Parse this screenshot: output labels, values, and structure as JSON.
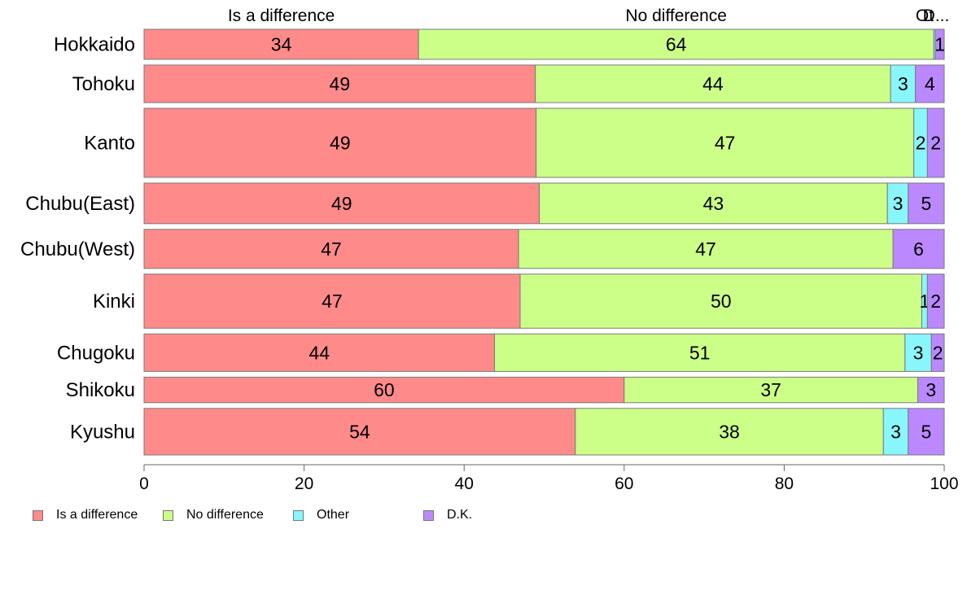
{
  "chart_data": {
    "type": "bar",
    "orientation": "horizontal",
    "stacked": true,
    "categories": [
      "Hokkaido",
      "Tohoku",
      "Kanto",
      "Chubu(East)",
      "Chubu(West)",
      "Kinki",
      "Chugoku",
      "Shikoku",
      "Kyushu"
    ],
    "series": [
      {
        "name": "Is a difference",
        "color": "#FF8A8A",
        "values": [
          34.3,
          48.9,
          49.0,
          49.4,
          46.8,
          47.0,
          43.8,
          60.0,
          53.9
        ],
        "labels": [
          "34",
          "49",
          "49",
          "49",
          "47",
          "47",
          "44",
          "60",
          "54"
        ]
      },
      {
        "name": "No difference",
        "color": "#CCFF88",
        "values": [
          64.4,
          44.4,
          47.2,
          43.5,
          46.8,
          50.2,
          51.3,
          36.7,
          38.5
        ],
        "labels": [
          "64",
          "44",
          "47",
          "43",
          "47",
          "50",
          "51",
          "37",
          "38"
        ]
      },
      {
        "name": "Other",
        "color": "#88F6FA",
        "values": [
          0.2,
          3.1,
          1.7,
          2.6,
          0.0,
          0.7,
          3.3,
          0.0,
          3.1
        ],
        "labels": [
          "",
          "3",
          "2",
          "3",
          "",
          "1",
          "3",
          "",
          "3"
        ]
      },
      {
        "name": "D.K.",
        "color": "#BB88FF",
        "values": [
          1.1,
          3.6,
          2.1,
          4.5,
          6.4,
          2.1,
          1.6,
          3.3,
          4.5
        ],
        "labels": [
          "1",
          "4",
          "2",
          "5",
          "6",
          "2",
          "2",
          "3",
          "5"
        ]
      }
    ],
    "weights": [
      1.0,
      1.25,
      2.3,
      1.35,
      1.3,
      1.8,
      1.25,
      0.85,
      1.55
    ],
    "top_labels": [
      "Is a difference",
      "No difference",
      "Ot",
      "D..."
    ],
    "xlim": [
      0,
      100
    ],
    "xticks": [
      "0",
      "20",
      "40",
      "60",
      "80",
      "100"
    ],
    "grid": false,
    "legend_position": "bottom-left"
  },
  "legend": [
    {
      "label": "Is a difference",
      "color": "#FF8A8A"
    },
    {
      "label": "No difference",
      "color": "#CCFF88"
    },
    {
      "label": "Other",
      "color": "#88F6FA"
    },
    {
      "label": "D.K.",
      "color": "#BB88FF"
    }
  ]
}
